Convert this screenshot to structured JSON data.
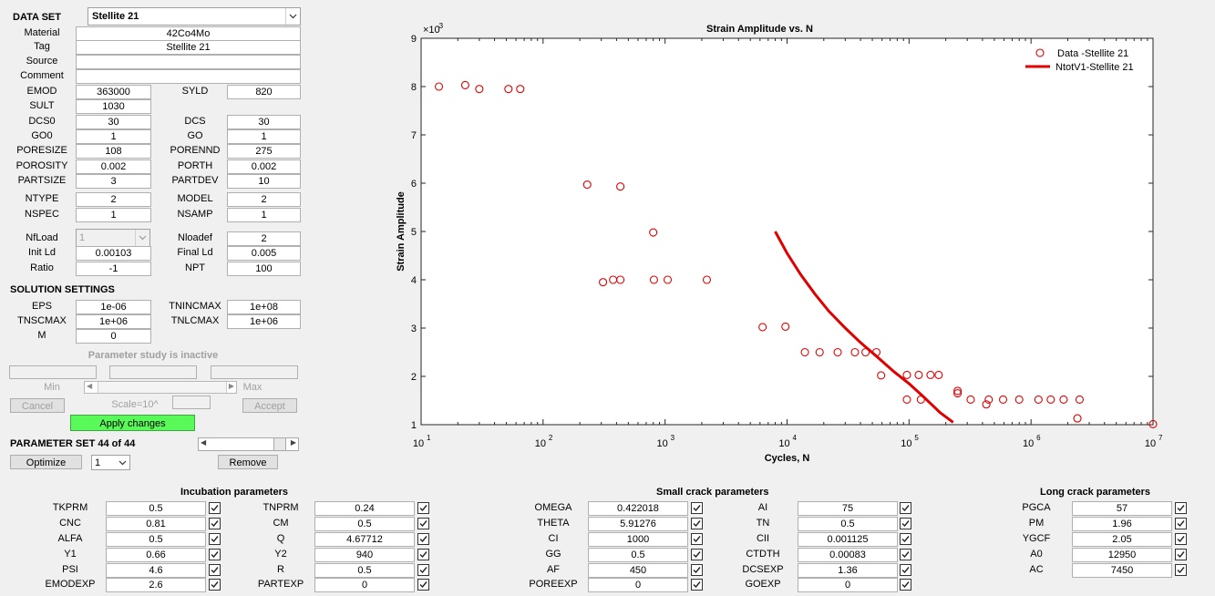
{
  "dataset": {
    "label": "DATA SET",
    "selected": "Stellite 21",
    "rows": [
      {
        "label": "Material",
        "value": "42Co4Mo"
      },
      {
        "label": "Tag",
        "value": "Stellite 21"
      },
      {
        "label": "Source",
        "value": ""
      },
      {
        "label": "Comment",
        "value": ""
      }
    ]
  },
  "params": [
    {
      "l1": "EMOD",
      "v1": "363000",
      "l2": "SYLD",
      "v2": "820"
    },
    {
      "l1": "SULT",
      "v1": "1030"
    },
    {
      "l1": "DCS0",
      "v1": "30",
      "l2": "DCS",
      "v2": "30"
    },
    {
      "l1": "GO0",
      "v1": "1",
      "l2": "GO",
      "v2": "1"
    },
    {
      "l1": "PORESIZE",
      "v1": "108",
      "l2": "PORENND",
      "v2": "275"
    },
    {
      "l1": "POROSITY",
      "v1": "0.002",
      "l2": "PORTH",
      "v2": "0.002"
    },
    {
      "l1": "PARTSIZE",
      "v1": "3",
      "l2": "PARTDEV",
      "v2": "10"
    },
    {
      "l1": "NTYPE",
      "v1": "2",
      "l2": "MODEL",
      "v2": "2"
    },
    {
      "l1": "NSPEC",
      "v1": "1",
      "l2": "NSAMP",
      "v2": "1"
    },
    {
      "l1": "NfLoad",
      "v1": "1",
      "l2": "Nloadef",
      "v2": "2"
    },
    {
      "l1": "Init Ld",
      "v1": "0.00103",
      "l2": "Final Ld",
      "v2": "0.005"
    },
    {
      "l1": "Ratio",
      "v1": "-1",
      "l2": "NPT",
      "v2": "100"
    }
  ],
  "solution": {
    "title": "SOLUTION SETTINGS",
    "rows": [
      {
        "l1": "EPS",
        "v1": "1e-06",
        "l2": "TNINCMAX",
        "v2": "1e+08"
      },
      {
        "l1": "TNSCMAX",
        "v1": "1e+06",
        "l2": "TNLCMAX",
        "v2": "1e+06"
      },
      {
        "l1": "M",
        "v1": "0"
      }
    ]
  },
  "param_study": {
    "status": "Parameter study is inactive",
    "min_label": "Min",
    "max_label": "Max",
    "scale_label": "Scale=10^",
    "cancel": "Cancel",
    "accept": "Accept",
    "apply": "Apply changes"
  },
  "param_set": {
    "title": "PARAMETER SET 44 of 44",
    "optimize": "Optimize",
    "select_value": "1",
    "remove": "Remove"
  },
  "incubation": {
    "title": "Incubation parameters",
    "rows": [
      {
        "l1": "TKPRM",
        "v1": "0.5",
        "l2": "TNPRM",
        "v2": "0.24"
      },
      {
        "l1": "CNC",
        "v1": "0.81",
        "l2": "CM",
        "v2": "0.5"
      },
      {
        "l1": "ALFA",
        "v1": "0.5",
        "l2": "Q",
        "v2": "4.67712"
      },
      {
        "l1": "Y1",
        "v1": "0.66",
        "l2": "Y2",
        "v2": "940"
      },
      {
        "l1": "PSI",
        "v1": "4.6",
        "l2": "R",
        "v2": "0.5"
      },
      {
        "l1": "EMODEXP",
        "v1": "2.6",
        "l2": "PARTEXP",
        "v2": "0"
      }
    ]
  },
  "small_crack": {
    "title": "Small crack parameters",
    "rows": [
      {
        "l1": "OMEGA",
        "v1": "0.422018",
        "l2": "AI",
        "v2": "75"
      },
      {
        "l1": "THETA",
        "v1": "5.91276",
        "l2": "TN",
        "v2": "0.5"
      },
      {
        "l1": "CI",
        "v1": "1000",
        "l2": "CII",
        "v2": "0.001125"
      },
      {
        "l1": "GG",
        "v1": "0.5",
        "l2": "CTDTH",
        "v2": "0.00083"
      },
      {
        "l1": "AF",
        "v1": "450",
        "l2": "DCSEXP",
        "v2": "1.36"
      },
      {
        "l1": "POREEXP",
        "v1": "0",
        "l2": "GOEXP",
        "v2": "0"
      }
    ]
  },
  "long_crack": {
    "title": "Long crack parameters",
    "rows": [
      {
        "l1": "PGCA",
        "v1": "57"
      },
      {
        "l1": "PM",
        "v1": "1.96"
      },
      {
        "l1": "YGCF",
        "v1": "2.05"
      },
      {
        "l1": "A0",
        "v1": "12950"
      },
      {
        "l1": "AC",
        "v1": "7450"
      }
    ]
  },
  "chart_data": {
    "type": "scatter",
    "title": "Strain Amplitude vs. N",
    "xlabel": "Cycles, N",
    "ylabel": "Strain Amplitude",
    "y_exponent_label": "×10",
    "y_exponent": "-3",
    "x_scale": "log",
    "xlim": [
      10,
      10000000
    ],
    "ylim": [
      1,
      9
    ],
    "x_ticks": [
      10,
      100,
      1000,
      10000,
      100000,
      1000000,
      10000000
    ],
    "x_tick_exponents": [
      "1",
      "2",
      "3",
      "4",
      "5",
      "6",
      "7"
    ],
    "y_ticks": [
      "1",
      "2",
      "3",
      "4",
      "5",
      "6",
      "7",
      "8",
      "9"
    ],
    "legend_position": "top-right",
    "colors": {
      "data": "#e00000",
      "fit": "#e00000"
    },
    "series": [
      {
        "name": "Data -Stellite 21",
        "kind": "markers",
        "points": [
          [
            14,
            8.0
          ],
          [
            23,
            8.03
          ],
          [
            30,
            7.95
          ],
          [
            52,
            7.95
          ],
          [
            65,
            7.95
          ],
          [
            230,
            5.97
          ],
          [
            310,
            3.95
          ],
          [
            375,
            4.0
          ],
          [
            430,
            4.0
          ],
          [
            430,
            5.93
          ],
          [
            800,
            4.98
          ],
          [
            810,
            4.0
          ],
          [
            1050,
            4.0
          ],
          [
            2200,
            4.0
          ],
          [
            6300,
            3.02
          ],
          [
            9700,
            3.03
          ],
          [
            14000,
            2.5
          ],
          [
            18500,
            2.5
          ],
          [
            26000,
            2.5
          ],
          [
            36000,
            2.5
          ],
          [
            44000,
            2.5
          ],
          [
            54000,
            2.5
          ],
          [
            59000,
            2.02
          ],
          [
            96000,
            2.03
          ],
          [
            120000,
            2.03
          ],
          [
            150000,
            2.03
          ],
          [
            175000,
            2.03
          ],
          [
            96000,
            1.52
          ],
          [
            125000,
            1.52
          ],
          [
            250000,
            1.7
          ],
          [
            250000,
            1.65
          ],
          [
            320000,
            1.52
          ],
          [
            430000,
            1.42
          ],
          [
            450000,
            1.52
          ],
          [
            590000,
            1.52
          ],
          [
            800000,
            1.52
          ],
          [
            1150000,
            1.52
          ],
          [
            1450000,
            1.52
          ],
          [
            1850000,
            1.52
          ],
          [
            2500000,
            1.52
          ],
          [
            2400000,
            1.13
          ],
          [
            10000000,
            1.01
          ]
        ]
      },
      {
        "name": "NtotV1-Stellite 21",
        "kind": "line",
        "points": [
          [
            8000,
            5.0
          ],
          [
            10000,
            4.55
          ],
          [
            13000,
            4.1
          ],
          [
            17000,
            3.7
          ],
          [
            22000,
            3.35
          ],
          [
            30000,
            3.0
          ],
          [
            40000,
            2.7
          ],
          [
            55000,
            2.4
          ],
          [
            75000,
            2.1
          ],
          [
            100000,
            1.85
          ],
          [
            135000,
            1.55
          ],
          [
            180000,
            1.25
          ],
          [
            230000,
            1.05
          ]
        ]
      }
    ]
  }
}
